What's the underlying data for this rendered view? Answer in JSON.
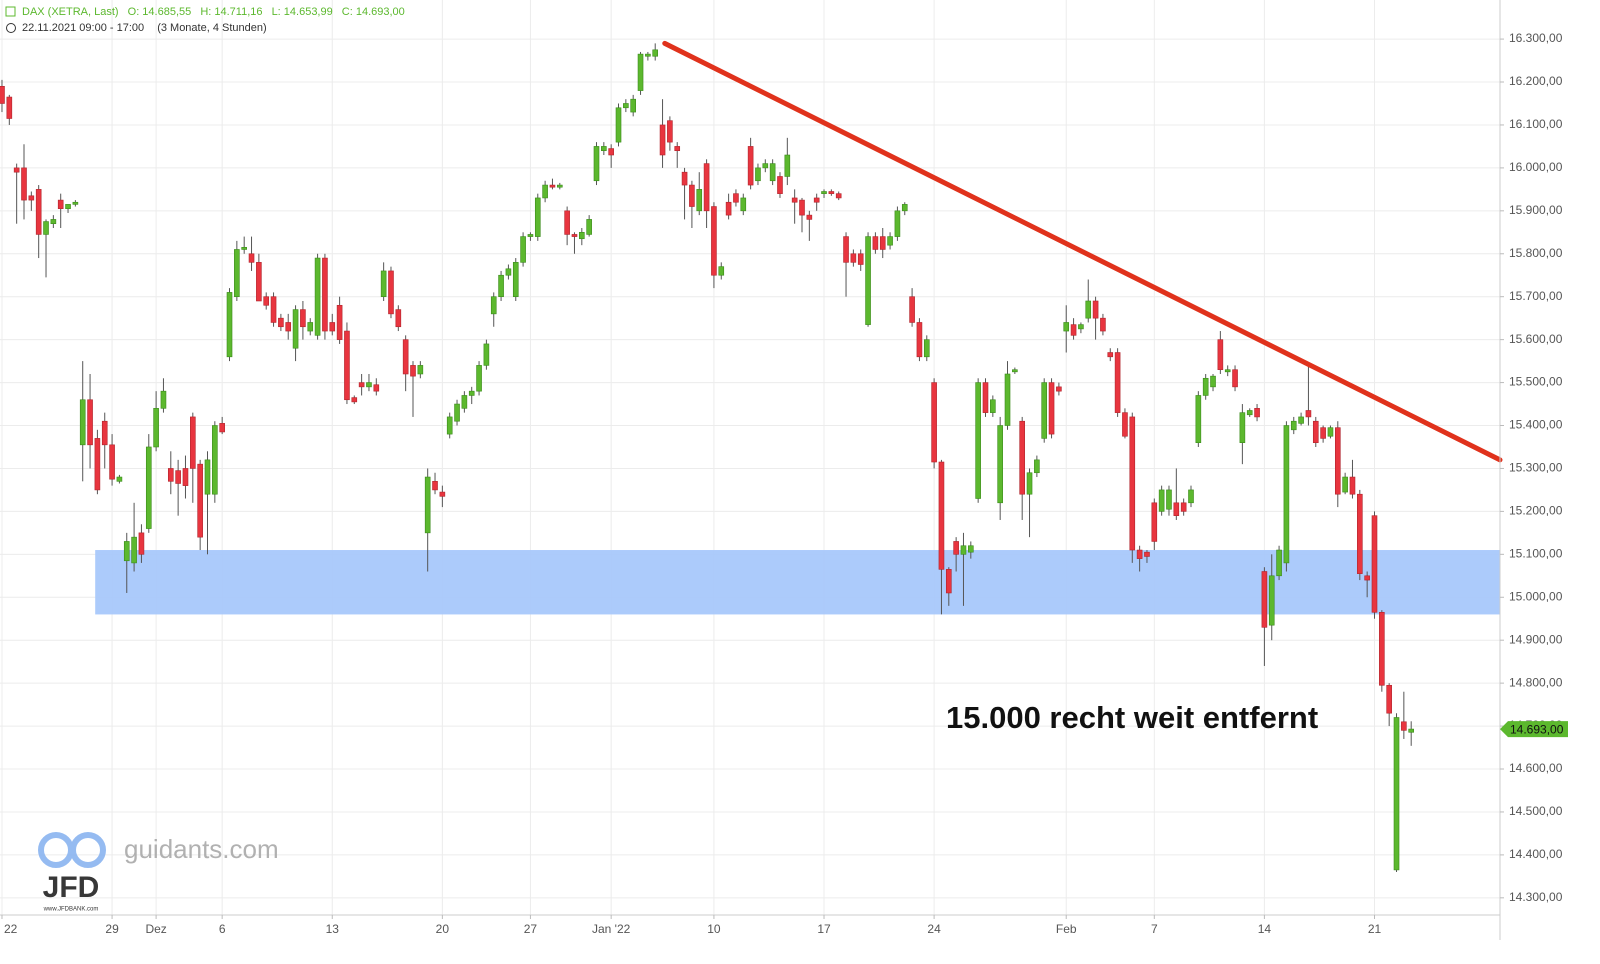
{
  "chart_data": {
    "type": "candlestick",
    "header": [
      "DAX (XETRA, Last)",
      "O: 14.685,55",
      "H: 14.711,16",
      "L: 14.653,99",
      "C: 14.693,00"
    ],
    "subheader": [
      "22.11.2021 09:00 - 17:00",
      "(3 Monate, 4 Stunden)"
    ],
    "annotation": "15.000 recht weit entfernt",
    "watermark": {
      "site": "guidants.com",
      "logo": "JFD",
      "url": "www.JFDBANK.com"
    },
    "up_color": "#5cb82e",
    "down_color": "#e8353f",
    "ylim": [
      14260,
      16391
    ],
    "xlim": [
      -0.27,
      204.1
    ],
    "grid": true,
    "yticks": [
      {
        "value": 14300,
        "label": "14.300,00"
      },
      {
        "value": 14400,
        "label": "14.400,00"
      },
      {
        "value": 14500,
        "label": "14.500,00"
      },
      {
        "value": 14600,
        "label": "14.600,00"
      },
      {
        "value": 14700,
        "label": "14.700,00"
      },
      {
        "value": 14800,
        "label": "14.800,00"
      },
      {
        "value": 14900,
        "label": "14.900,00"
      },
      {
        "value": 15000,
        "label": "15.000,00"
      },
      {
        "value": 15100,
        "label": "15.100,00"
      },
      {
        "value": 15200,
        "label": "15.200,00"
      },
      {
        "value": 15300,
        "label": "15.300,00"
      },
      {
        "value": 15400,
        "label": "15.400,00"
      },
      {
        "value": 15500,
        "label": "15.500,00"
      },
      {
        "value": 15600,
        "label": "15.600,00"
      },
      {
        "value": 15700,
        "label": "15.700,00"
      },
      {
        "value": 15800,
        "label": "15.800,00"
      },
      {
        "value": 15900,
        "label": "15.900,00"
      },
      {
        "value": 16000,
        "label": "16.000,00"
      },
      {
        "value": 16100,
        "label": "16.100,00"
      },
      {
        "value": 16200,
        "label": "16.200,00"
      },
      {
        "value": 16300,
        "label": "16.300,00"
      }
    ],
    "xticks": [
      {
        "value": 0,
        "label": "22"
      },
      {
        "value": 15,
        "label": "29"
      },
      {
        "value": 21,
        "label": "Dez"
      },
      {
        "value": 30,
        "label": "6"
      },
      {
        "value": 45,
        "label": "13"
      },
      {
        "value": 60,
        "label": "20"
      },
      {
        "value": 72,
        "label": "27"
      },
      {
        "value": 83,
        "label": "Jan '22"
      },
      {
        "value": 97,
        "label": "10"
      },
      {
        "value": 112,
        "label": "17"
      },
      {
        "value": 127,
        "label": "24"
      },
      {
        "value": 145,
        "label": "Feb"
      },
      {
        "value": 157,
        "label": "7"
      },
      {
        "value": 172,
        "label": "14"
      },
      {
        "value": 187,
        "label": "21"
      }
    ],
    "last_price": {
      "value": 14693,
      "label": "14.693,00"
    },
    "zone": {
      "x_start": 12.7,
      "x_end": 204.1,
      "from": 14960,
      "to": 15110,
      "color": "#a8c8fb"
    },
    "trendline": {
      "x_start": 90.3,
      "y_start": 16290,
      "x_end": 204.1,
      "y_end": 15320,
      "color": "#e0321c"
    },
    "ohlc": [
      [
        16190,
        16205,
        16130,
        16150
      ],
      [
        16165,
        16170,
        16100,
        16115
      ],
      [
        16000,
        16010,
        15870,
        15990
      ],
      [
        16000,
        16055,
        15880,
        15925
      ],
      [
        15935,
        15945,
        15900,
        15925
      ],
      [
        15950,
        15960,
        15790,
        15845
      ],
      [
        15845,
        15880,
        15745,
        15875
      ],
      [
        15870,
        15890,
        15860,
        15880
      ],
      [
        15925,
        15940,
        15860,
        15905
      ],
      [
        15905,
        15915,
        15895,
        15915
      ],
      [
        15915,
        15925,
        15910,
        15920
      ],
      [
        15355,
        15550,
        15270,
        15460
      ],
      [
        15460,
        15520,
        15300,
        15355
      ],
      [
        15370,
        15390,
        15240,
        15250
      ],
      [
        15410,
        15430,
        15300,
        15355
      ],
      [
        15355,
        15380,
        15260,
        15275
      ],
      [
        15270,
        15285,
        15265,
        15280
      ],
      [
        15085,
        15150,
        15010,
        15130
      ],
      [
        15080,
        15220,
        15060,
        15140
      ],
      [
        15150,
        15170,
        15080,
        15100
      ],
      [
        15160,
        15380,
        15150,
        15350
      ],
      [
        15350,
        15480,
        15340,
        15440
      ],
      [
        15440,
        15510,
        15430,
        15480
      ],
      [
        15300,
        15340,
        15240,
        15270
      ],
      [
        15295,
        15320,
        15190,
        15265
      ],
      [
        15300,
        15330,
        15230,
        15260
      ],
      [
        15420,
        15430,
        15220,
        15300
      ],
      [
        15310,
        15320,
        15110,
        15140
      ],
      [
        15240,
        15340,
        15100,
        15320
      ],
      [
        15240,
        15410,
        15220,
        15400
      ],
      [
        15405,
        15420,
        15380,
        15385
      ],
      [
        15560,
        15720,
        15550,
        15710
      ],
      [
        15700,
        15830,
        15690,
        15810
      ],
      [
        15810,
        15840,
        15800,
        15815
      ],
      [
        15800,
        15840,
        15760,
        15780
      ],
      [
        15780,
        15800,
        15690,
        15690
      ],
      [
        15700,
        15710,
        15670,
        15680
      ],
      [
        15700,
        15710,
        15630,
        15640
      ],
      [
        15650,
        15660,
        15620,
        15630
      ],
      [
        15640,
        15660,
        15600,
        15620
      ],
      [
        15580,
        15680,
        15550,
        15670
      ],
      [
        15670,
        15690,
        15600,
        15630
      ],
      [
        15620,
        15650,
        15610,
        15640
      ],
      [
        15610,
        15800,
        15600,
        15790
      ],
      [
        15790,
        15800,
        15600,
        15620
      ],
      [
        15640,
        15660,
        15610,
        15620
      ],
      [
        15680,
        15700,
        15590,
        15600
      ],
      [
        15620,
        15640,
        15450,
        15460
      ],
      [
        15465,
        15470,
        15450,
        15455
      ],
      [
        15500,
        15520,
        15470,
        15490
      ],
      [
        15490,
        15520,
        15480,
        15500
      ],
      [
        15495,
        15510,
        15470,
        15480
      ],
      [
        15700,
        15780,
        15690,
        15760
      ],
      [
        15760,
        15770,
        15650,
        15660
      ],
      [
        15670,
        15680,
        15620,
        15630
      ],
      [
        15600,
        15610,
        15480,
        15520
      ],
      [
        15540,
        15550,
        15420,
        15515
      ],
      [
        15520,
        15550,
        15510,
        15540
      ],
      [
        15150,
        15300,
        15060,
        15280
      ],
      [
        15270,
        15290,
        15240,
        15250
      ],
      [
        15245,
        15260,
        15210,
        15235
      ],
      [
        15380,
        15430,
        15370,
        15420
      ],
      [
        15410,
        15460,
        15400,
        15450
      ],
      [
        15440,
        15480,
        15430,
        15470
      ],
      [
        15470,
        15490,
        15450,
        15480
      ],
      [
        15480,
        15550,
        15470,
        15540
      ],
      [
        15540,
        15600,
        15530,
        15590
      ],
      [
        15660,
        15710,
        15630,
        15700
      ],
      [
        15700,
        15760,
        15690,
        15750
      ],
      [
        15750,
        15775,
        15740,
        15765
      ],
      [
        15700,
        15790,
        15690,
        15780
      ],
      [
        15780,
        15850,
        15770,
        15840
      ],
      [
        15840,
        15850,
        15830,
        15845
      ],
      [
        15840,
        15940,
        15830,
        15930
      ],
      [
        15930,
        15970,
        15920,
        15960
      ],
      [
        15960,
        15975,
        15950,
        15955
      ],
      [
        15955,
        15965,
        15950,
        15960
      ],
      [
        15900,
        15910,
        15820,
        15845
      ],
      [
        15845,
        15850,
        15800,
        15840
      ],
      [
        15835,
        15860,
        15820,
        15850
      ],
      [
        15845,
        15890,
        15840,
        15880
      ],
      [
        15970,
        16060,
        15960,
        16050
      ],
      [
        16040,
        16060,
        16030,
        16050
      ],
      [
        16045,
        16055,
        16000,
        16030
      ],
      [
        16060,
        16150,
        16050,
        16140
      ],
      [
        16140,
        16160,
        16130,
        16150
      ],
      [
        16130,
        16170,
        16120,
        16160
      ],
      [
        16180,
        16270,
        16170,
        16265
      ],
      [
        16260,
        16270,
        16250,
        16265
      ],
      [
        16260,
        16290,
        16250,
        16275
      ],
      [
        16100,
        16160,
        16000,
        16030
      ],
      [
        16110,
        16120,
        16040,
        16060
      ],
      [
        16050,
        16060,
        16000,
        16040
      ],
      [
        15990,
        16000,
        15880,
        15960
      ],
      [
        15960,
        15970,
        15860,
        15910
      ],
      [
        15900,
        15990,
        15890,
        15950
      ],
      [
        16010,
        16020,
        15860,
        15900
      ],
      [
        15910,
        15920,
        15720,
        15750
      ],
      [
        15750,
        15780,
        15740,
        15770
      ],
      [
        15920,
        15940,
        15880,
        15890
      ],
      [
        15940,
        15950,
        15910,
        15920
      ],
      [
        15900,
        15940,
        15890,
        15930
      ],
      [
        16050,
        16070,
        15950,
        15960
      ],
      [
        15970,
        16010,
        15960,
        16000
      ],
      [
        16000,
        16020,
        15990,
        16010
      ],
      [
        15970,
        16020,
        15960,
        16010
      ],
      [
        15980,
        15990,
        15930,
        15940
      ],
      [
        15980,
        16070,
        15960,
        16030
      ],
      [
        15930,
        15950,
        15870,
        15920
      ],
      [
        15925,
        15930,
        15850,
        15890
      ],
      [
        15890,
        15900,
        15830,
        15880
      ],
      [
        15930,
        15940,
        15900,
        15920
      ],
      [
        15940,
        15950,
        15930,
        15945
      ],
      [
        15945,
        15950,
        15935,
        15940
      ],
      [
        15940,
        15945,
        15925,
        15930
      ],
      [
        15840,
        15850,
        15700,
        15780
      ],
      [
        15800,
        15810,
        15770,
        15780
      ],
      [
        15800,
        15810,
        15760,
        15775
      ],
      [
        15635,
        15850,
        15630,
        15840
      ],
      [
        15840,
        15850,
        15800,
        15810
      ],
      [
        15840,
        15860,
        15790,
        15810
      ],
      [
        15820,
        15850,
        15810,
        15840
      ],
      [
        15840,
        15910,
        15830,
        15900
      ],
      [
        15900,
        15920,
        15890,
        15915
      ],
      [
        15700,
        15720,
        15630,
        15640
      ],
      [
        15640,
        15650,
        15550,
        15560
      ],
      [
        15560,
        15610,
        15550,
        15600
      ],
      [
        15500,
        15510,
        15300,
        15315
      ],
      [
        15315,
        15320,
        14960,
        15065
      ],
      [
        15065,
        15070,
        14980,
        15010
      ],
      [
        15130,
        15140,
        15060,
        15100
      ],
      [
        15100,
        15150,
        14980,
        15120
      ],
      [
        15105,
        15130,
        15090,
        15120
      ],
      [
        15230,
        15510,
        15220,
        15500
      ],
      [
        15500,
        15510,
        15420,
        15430
      ],
      [
        15430,
        15470,
        15420,
        15460
      ],
      [
        15220,
        15420,
        15180,
        15400
      ],
      [
        15400,
        15550,
        15390,
        15520
      ],
      [
        15525,
        15535,
        15520,
        15530
      ],
      [
        15410,
        15420,
        15180,
        15240
      ],
      [
        15240,
        15300,
        15140,
        15290
      ],
      [
        15290,
        15330,
        15280,
        15320
      ],
      [
        15370,
        15510,
        15360,
        15500
      ],
      [
        15500,
        15510,
        15370,
        15380
      ],
      [
        15490,
        15500,
        15470,
        15480
      ],
      [
        15620,
        15680,
        15570,
        15640
      ],
      [
        15635,
        15650,
        15600,
        15610
      ],
      [
        15625,
        15640,
        15615,
        15635
      ],
      [
        15650,
        15740,
        15640,
        15690
      ],
      [
        15690,
        15700,
        15600,
        15650
      ],
      [
        15650,
        15660,
        15610,
        15620
      ],
      [
        15570,
        15580,
        15550,
        15560
      ],
      [
        15570,
        15580,
        15420,
        15430
      ],
      [
        15430,
        15440,
        15370,
        15375
      ],
      [
        15420,
        15430,
        15080,
        15110
      ],
      [
        15110,
        15120,
        15060,
        15090
      ],
      [
        15105,
        15110,
        15080,
        15095
      ],
      [
        15220,
        15230,
        15110,
        15130
      ],
      [
        15200,
        15260,
        15190,
        15250
      ],
      [
        15205,
        15260,
        15190,
        15250
      ],
      [
        15220,
        15300,
        15180,
        15190
      ],
      [
        15220,
        15230,
        15190,
        15200
      ],
      [
        15220,
        15260,
        15210,
        15250
      ],
      [
        15360,
        15480,
        15350,
        15470
      ],
      [
        15470,
        15520,
        15460,
        15510
      ],
      [
        15490,
        15520,
        15480,
        15515
      ],
      [
        15600,
        15620,
        15520,
        15530
      ],
      [
        15525,
        15540,
        15515,
        15530
      ],
      [
        15530,
        15540,
        15480,
        15490
      ],
      [
        15360,
        15450,
        15310,
        15430
      ],
      [
        15425,
        15440,
        15420,
        15435
      ],
      [
        15440,
        15450,
        15410,
        15420
      ],
      [
        15060,
        15070,
        14840,
        14930
      ],
      [
        14935,
        15100,
        14900,
        15050
      ],
      [
        15050,
        15120,
        15040,
        15110
      ],
      [
        15080,
        15410,
        15060,
        15400
      ],
      [
        15390,
        15420,
        15380,
        15410
      ],
      [
        15405,
        15430,
        15400,
        15420
      ],
      [
        15435,
        15540,
        15400,
        15420
      ],
      [
        15410,
        15420,
        15350,
        15360
      ],
      [
        15395,
        15400,
        15360,
        15370
      ],
      [
        15375,
        15400,
        15370,
        15395
      ],
      [
        15395,
        15410,
        15210,
        15240
      ],
      [
        15245,
        15290,
        15240,
        15280
      ],
      [
        15280,
        15320,
        15230,
        15240
      ],
      [
        15240,
        15250,
        15040,
        15055
      ],
      [
        15050,
        15060,
        15000,
        15040
      ],
      [
        15190,
        15200,
        14950,
        14965
      ],
      [
        14965,
        14970,
        14780,
        14795
      ],
      [
        14795,
        14800,
        14700,
        14730
      ],
      [
        14365,
        14730,
        14360,
        14720
      ],
      [
        14710,
        14780,
        14670,
        14690
      ],
      [
        14685.55,
        14711.16,
        14653.99,
        14693
      ]
    ]
  }
}
